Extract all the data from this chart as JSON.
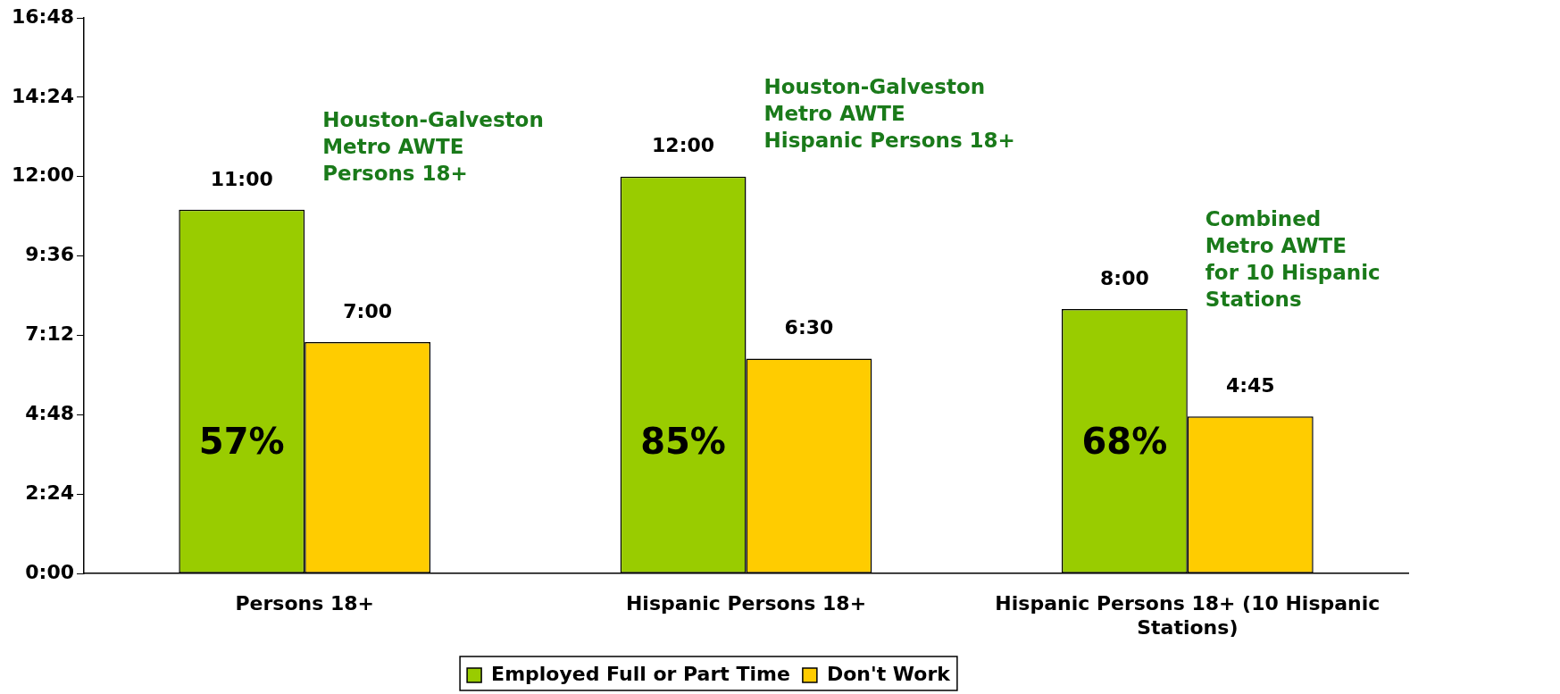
{
  "chart_data": {
    "type": "bar",
    "categories": [
      "Persons 18+",
      "Hispanic Persons 18+",
      "Hispanic Persons 18+ (10 Hispanic Stations)"
    ],
    "series": [
      {
        "name": "Employed Full or Part Time",
        "color": "#99cc00",
        "values": [
          11,
          12,
          8
        ],
        "value_labels": [
          "11:00",
          "12:00",
          "8:00"
        ]
      },
      {
        "name": "Don't Work",
        "color": "#ffcc00",
        "values": [
          7,
          6.5,
          4.75
        ],
        "value_labels": [
          "7:00",
          "6:30",
          "4:45"
        ]
      }
    ],
    "ylim": [
      0,
      16.8
    ],
    "yticks": [
      {
        "value": 0,
        "label": "0:00"
      },
      {
        "value": 2.4,
        "label": "2:24"
      },
      {
        "value": 4.8,
        "label": "4:48"
      },
      {
        "value": 7.2,
        "label": "7:12"
      },
      {
        "value": 9.6,
        "label": "9:36"
      },
      {
        "value": 12,
        "label": "12:00"
      },
      {
        "value": 14.4,
        "label": "14:24"
      },
      {
        "value": 16.8,
        "label": "16:48"
      }
    ],
    "annotations": [
      {
        "text": "57%",
        "x": "Persons 18+",
        "y": 3.9
      },
      {
        "text": "85%",
        "x": "Hispanic Persons 18+",
        "y": 3.9
      },
      {
        "text": "68%",
        "x": "Hispanic Persons 18+ (10 Hispanic Stations)",
        "y": 3.9
      },
      "Houston-Galveston\nMetro AWTE\nPersons 18+",
      "Houston-Galveston\nMetro AWTE\nHispanic Persons 18+",
      "Combined\nMetro AWTE\nfor 10 Hispanic\nStations"
    ],
    "grid": false,
    "legend": "bottom"
  }
}
